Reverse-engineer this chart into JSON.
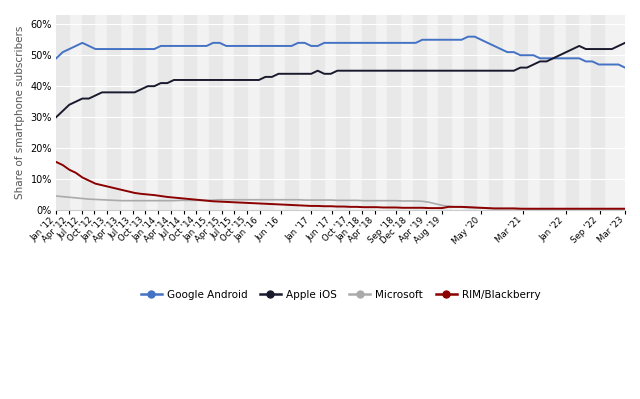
{
  "title": "",
  "ylabel": "Share of smartphone subscribers",
  "background_color": "#ffffff",
  "ylim": [
    0,
    63
  ],
  "yticks": [
    0,
    10,
    20,
    30,
    40,
    50,
    60
  ],
  "series": {
    "Google Android": {
      "color": "#4472c4",
      "linewidth": 1.4,
      "data": [
        49,
        51,
        52,
        53,
        54,
        53,
        52,
        52,
        52,
        52,
        52,
        52,
        52,
        52,
        52,
        52,
        53,
        53,
        53,
        53,
        53,
        53,
        53,
        53,
        54,
        54,
        53,
        53,
        53,
        53,
        53,
        53,
        53,
        53,
        53,
        53,
        53,
        54,
        54,
        53,
        53,
        54,
        54,
        54,
        54,
        54,
        54,
        54,
        54,
        54,
        54,
        54,
        54,
        54,
        54,
        54,
        55,
        55,
        55,
        55,
        55,
        55,
        55,
        56,
        56,
        55,
        54,
        53,
        52,
        51,
        51,
        50,
        50,
        50,
        49,
        49,
        49,
        49,
        49,
        49,
        49,
        48,
        48,
        47,
        47,
        47,
        47,
        46
      ]
    },
    "Apple iOS": {
      "color": "#1a1a2e",
      "linewidth": 1.4,
      "data": [
        30,
        32,
        34,
        35,
        36,
        36,
        37,
        38,
        38,
        38,
        38,
        38,
        38,
        39,
        40,
        40,
        41,
        41,
        42,
        42,
        42,
        42,
        42,
        42,
        42,
        42,
        42,
        42,
        42,
        42,
        42,
        42,
        43,
        43,
        44,
        44,
        44,
        44,
        44,
        44,
        45,
        44,
        44,
        45,
        45,
        45,
        45,
        45,
        45,
        45,
        45,
        45,
        45,
        45,
        45,
        45,
        45,
        45,
        45,
        45,
        45,
        45,
        45,
        45,
        45,
        45,
        45,
        45,
        45,
        45,
        45,
        46,
        46,
        47,
        48,
        48,
        49,
        50,
        51,
        52,
        53,
        52,
        52,
        52,
        52,
        52,
        53,
        54
      ]
    },
    "Microsoft": {
      "color": "#aaaaaa",
      "linewidth": 1.2,
      "data": [
        4.5,
        4.3,
        4.1,
        3.9,
        3.7,
        3.5,
        3.4,
        3.3,
        3.2,
        3.1,
        3.0,
        3.0,
        3.0,
        3.0,
        3.0,
        3.0,
        3.0,
        3.0,
        3.0,
        3.1,
        3.1,
        3.1,
        3.1,
        3.1,
        3.2,
        3.3,
        3.3,
        3.3,
        3.3,
        3.3,
        3.3,
        3.3,
        3.3,
        3.3,
        3.3,
        3.3,
        3.3,
        3.3,
        3.2,
        3.2,
        3.2,
        3.2,
        3.2,
        3.1,
        3.1,
        3.1,
        3.1,
        3.0,
        3.0,
        3.0,
        3.0,
        3.0,
        3.0,
        2.9,
        2.9,
        2.9,
        2.8,
        2.5,
        2.0,
        1.5,
        1.2,
        1.0,
        0.9,
        0.8,
        0.7,
        0.6,
        0.5,
        0.4,
        0.4,
        0.4,
        0.4,
        0.4,
        0.3,
        0.3,
        0.3,
        0.3,
        0.3,
        0.3,
        0.3,
        0.3,
        0.3,
        0.3,
        0.3,
        0.3,
        0.3,
        0.3,
        0.3,
        0.3
      ]
    },
    "RIM/Blackberry": {
      "color": "#8b0000",
      "linewidth": 1.4,
      "data": [
        15.5,
        14.5,
        13.0,
        12.0,
        10.5,
        9.5,
        8.5,
        8.0,
        7.5,
        7.0,
        6.5,
        6.0,
        5.5,
        5.2,
        5.0,
        4.8,
        4.5,
        4.2,
        4.0,
        3.8,
        3.6,
        3.4,
        3.2,
        3.0,
        2.8,
        2.7,
        2.6,
        2.5,
        2.4,
        2.3,
        2.2,
        2.1,
        2.0,
        1.9,
        1.8,
        1.7,
        1.6,
        1.5,
        1.4,
        1.3,
        1.3,
        1.2,
        1.2,
        1.1,
        1.1,
        1.0,
        1.0,
        0.9,
        0.9,
        0.9,
        0.8,
        0.8,
        0.8,
        0.7,
        0.7,
        0.7,
        0.7,
        0.6,
        0.6,
        0.6,
        1.0,
        1.0,
        1.0,
        0.9,
        0.8,
        0.7,
        0.6,
        0.5,
        0.5,
        0.5,
        0.5,
        0.4,
        0.4,
        0.4,
        0.4,
        0.4,
        0.4,
        0.4,
        0.4,
        0.4,
        0.4,
        0.4,
        0.4,
        0.4,
        0.4,
        0.4,
        0.4,
        0.4
      ]
    }
  },
  "xtick_data": [
    [
      2012,
      1,
      "Jan '12"
    ],
    [
      2012,
      4,
      "Apr '12"
    ],
    [
      2012,
      7,
      "Jul '12"
    ],
    [
      2012,
      10,
      "Oct '12"
    ],
    [
      2013,
      1,
      "Jan '13"
    ],
    [
      2013,
      4,
      "Apr '13"
    ],
    [
      2013,
      7,
      "Jul '13"
    ],
    [
      2013,
      10,
      "Oct '13"
    ],
    [
      2014,
      1,
      "Jan '14"
    ],
    [
      2014,
      4,
      "Apr '14"
    ],
    [
      2014,
      7,
      "Jul '14"
    ],
    [
      2014,
      10,
      "Oct '14"
    ],
    [
      2015,
      1,
      "Jan '15"
    ],
    [
      2015,
      4,
      "Apr '15"
    ],
    [
      2015,
      7,
      "Jul '15"
    ],
    [
      2015,
      10,
      "Oct '15"
    ],
    [
      2016,
      1,
      "Jan '16"
    ],
    [
      2016,
      6,
      "Jun '16"
    ],
    [
      2017,
      1,
      "Jan '17"
    ],
    [
      2017,
      6,
      "Jun '17"
    ],
    [
      2017,
      10,
      "Oct '17"
    ],
    [
      2018,
      1,
      "Jan '18"
    ],
    [
      2018,
      4,
      "Apr '18"
    ],
    [
      2018,
      9,
      "Sep '18"
    ],
    [
      2018,
      12,
      "Dec '18"
    ],
    [
      2019,
      4,
      "Apr '19"
    ],
    [
      2019,
      8,
      "Aug '19"
    ],
    [
      2020,
      5,
      "May '20"
    ],
    [
      2021,
      3,
      "Mar '21"
    ],
    [
      2022,
      1,
      "Jan '22"
    ],
    [
      2022,
      9,
      "Sep '22"
    ],
    [
      2023,
      3,
      "Mar '23"
    ]
  ],
  "legend": {
    "labels": [
      "Google Android",
      "Apple iOS",
      "Microsoft",
      "RIM/Blackberry"
    ],
    "colors": [
      "#4472c4",
      "#1a1a2e",
      "#aaaaaa",
      "#8b0000"
    ]
  },
  "stripe_color_dark": "#e8e8e8",
  "stripe_color_light": "#f2f2f2",
  "grid_color": "#ffffff",
  "spine_color": "#cccccc"
}
